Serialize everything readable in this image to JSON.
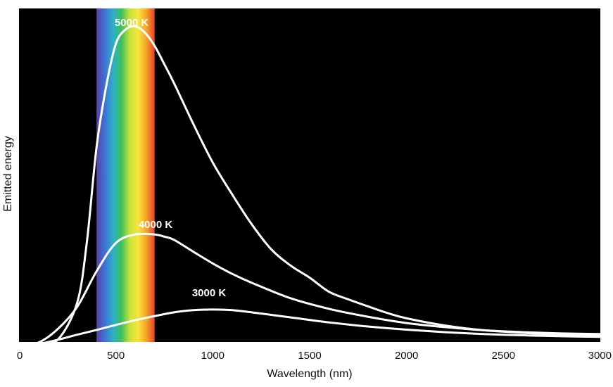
{
  "chart_data": {
    "type": "line",
    "title": "",
    "xlabel": "Wavelength (nm)",
    "ylabel": "Emitted energy",
    "xlim": [
      0,
      3000
    ],
    "ylim": [
      0,
      1
    ],
    "x_ticks": [
      "0",
      "500",
      "1000",
      "1500",
      "2000",
      "2500",
      "3000"
    ],
    "y_ticks": [],
    "grid": false,
    "background_color": "#000000",
    "line_color": "#ffffff",
    "visible_spectrum_band": {
      "from": 400,
      "to": 700,
      "colors": [
        "#5b3fa8",
        "#3d73d6",
        "#2bb0c8",
        "#3cbf59",
        "#c9e23a",
        "#f7e53b",
        "#f7a428",
        "#e8402a"
      ]
    },
    "series": [
      {
        "name": "5000 K",
        "x": [
          0,
          100,
          200,
          300,
          350,
          400,
          450,
          500,
          550,
          600,
          650,
          700,
          750,
          800,
          900,
          1000,
          1100,
          1200,
          1300,
          1400,
          1500,
          1600,
          1700,
          1800,
          1900,
          2000,
          2200,
          2400,
          2600,
          2800,
          3000
        ],
        "y": [
          0.0,
          0.002,
          0.016,
          0.133,
          0.325,
          0.626,
          0.82,
          0.955,
          1.0,
          1.01,
          0.99,
          0.948,
          0.89,
          0.83,
          0.7,
          0.578,
          0.477,
          0.383,
          0.304,
          0.252,
          0.213,
          0.168,
          0.144,
          0.122,
          0.101,
          0.084,
          0.061,
          0.046,
          0.038,
          0.032,
          0.029
        ]
      },
      {
        "name": "4000 K",
        "x": [
          0,
          100,
          200,
          300,
          400,
          500,
          600,
          700,
          750,
          800,
          900,
          1000,
          1100,
          1200,
          1400,
          1600,
          1800,
          2000,
          2200,
          2400,
          2600,
          2800,
          3000
        ],
        "y": [
          0.0,
          0.007,
          0.05,
          0.12,
          0.233,
          0.323,
          0.35,
          0.35,
          0.343,
          0.333,
          0.295,
          0.258,
          0.225,
          0.197,
          0.148,
          0.114,
          0.089,
          0.069,
          0.056,
          0.046,
          0.04,
          0.036,
          0.034
        ]
      },
      {
        "name": "3000 K",
        "x": [
          0,
          100,
          200,
          300,
          400,
          500,
          600,
          700,
          800,
          900,
          1000,
          1100,
          1200,
          1400,
          1600,
          1800,
          2000,
          2200,
          2400,
          2600,
          2800,
          3000
        ],
        "y": [
          0.0,
          0.003,
          0.016,
          0.032,
          0.047,
          0.063,
          0.078,
          0.091,
          0.103,
          0.11,
          0.112,
          0.11,
          0.103,
          0.087,
          0.071,
          0.058,
          0.048,
          0.04,
          0.034,
          0.03,
          0.027,
          0.025
        ]
      }
    ]
  }
}
